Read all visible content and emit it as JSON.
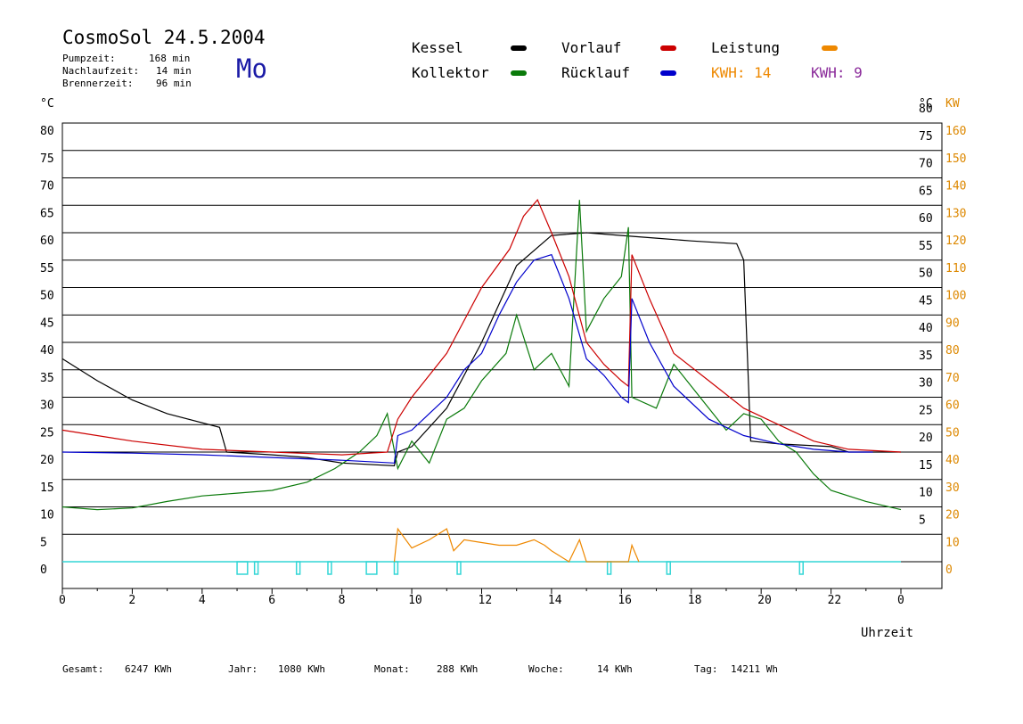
{
  "header": {
    "title": "CosmoSol 24.5.2004",
    "day": "Mo",
    "stats": [
      {
        "label": "Pumpzeit:",
        "value": "168 min"
      },
      {
        "label": "Nachlaufzeit:",
        "value": "14 min"
      },
      {
        "label": "Brennerzeit:",
        "value": "96 min"
      }
    ]
  },
  "legend": {
    "kessel": "Kessel",
    "kollektor": "Kollektor",
    "vorlauf": "Vorlauf",
    "ruecklauf": "Rücklauf",
    "leistung": "Leistung",
    "kwh_orange": "KWH: 14",
    "kwh_purple": "KWH: 9"
  },
  "axes": {
    "left_unit": "°C",
    "right_unit": "°C",
    "right_unit2": "KW",
    "xlabel": "Uhrzeit"
  },
  "footer": [
    {
      "label": "Gesamt:",
      "value": "6247 KWh"
    },
    {
      "label": "Jahr:",
      "value": "1080 KWh"
    },
    {
      "label": "Monat:",
      "value": "288 KWh"
    },
    {
      "label": "Woche:",
      "value": "14 KWh"
    },
    {
      "label": "Tag:",
      "value": "14211 Wh"
    }
  ],
  "colors": {
    "kessel": "#000000",
    "kollektor": "#0a7a0a",
    "vorlauf": "#cc0000",
    "ruecklauf": "#0000cc",
    "leistung": "#ee8800",
    "kwh2": "#8a2a9a",
    "pump": "#33d6d6",
    "right_kw": "#dd8800"
  },
  "chart_data": {
    "type": "line",
    "xlabel": "Uhrzeit",
    "xlim": [
      0,
      24
    ],
    "ylim": [
      -5,
      80
    ],
    "x_ticks": [
      "0",
      "2",
      "4",
      "6",
      "8",
      "10",
      "12",
      "14",
      "16",
      "18",
      "20",
      "22",
      "0"
    ],
    "y_ticks_left": [
      "0",
      "5",
      "10",
      "15",
      "20",
      "25",
      "30",
      "35",
      "40",
      "45",
      "50",
      "55",
      "60",
      "65",
      "70",
      "75",
      "80"
    ],
    "y_ticks_right": [
      "5",
      "10",
      "15",
      "20",
      "25",
      "30",
      "35",
      "40",
      "45",
      "50",
      "55",
      "60",
      "65",
      "70",
      "75",
      "80"
    ],
    "y_ticks_kw": [
      "0",
      "10",
      "20",
      "30",
      "40",
      "50",
      "60",
      "70",
      "80",
      "90",
      "100",
      "110",
      "120",
      "130",
      "140",
      "150",
      "160"
    ],
    "grid": true,
    "series": [
      {
        "name": "Kessel",
        "color": "#000000",
        "points": [
          [
            0,
            37
          ],
          [
            1,
            33
          ],
          [
            2,
            29.5
          ],
          [
            3,
            27
          ],
          [
            4.5,
            24.5
          ],
          [
            4.7,
            20
          ],
          [
            6,
            19.5
          ],
          [
            7,
            19
          ],
          [
            8,
            18
          ],
          [
            9.5,
            17.5
          ],
          [
            9.6,
            20
          ],
          [
            10,
            21
          ],
          [
            11,
            28
          ],
          [
            12,
            40
          ],
          [
            13,
            54
          ],
          [
            14,
            59.5
          ],
          [
            15,
            60
          ],
          [
            16,
            59.5
          ],
          [
            17,
            59
          ],
          [
            18,
            58.5
          ],
          [
            19.3,
            58
          ],
          [
            19.5,
            55
          ],
          [
            19.7,
            22
          ],
          [
            20.5,
            21.5
          ],
          [
            22,
            21
          ],
          [
            22.5,
            20
          ],
          [
            24,
            20
          ]
        ]
      },
      {
        "name": "Kollektor",
        "color": "#0a7a0a",
        "points": [
          [
            0,
            10
          ],
          [
            1,
            9.5
          ],
          [
            2,
            9.8
          ],
          [
            3,
            11
          ],
          [
            4,
            12
          ],
          [
            5,
            12.5
          ],
          [
            6,
            13
          ],
          [
            7,
            14.5
          ],
          [
            7.8,
            17
          ],
          [
            8.5,
            20
          ],
          [
            9,
            23
          ],
          [
            9.3,
            27
          ],
          [
            9.6,
            17
          ],
          [
            10,
            22
          ],
          [
            10.5,
            18
          ],
          [
            11,
            26
          ],
          [
            11.5,
            28
          ],
          [
            12,
            33
          ],
          [
            12.7,
            38
          ],
          [
            13,
            45
          ],
          [
            13.5,
            35
          ],
          [
            14,
            38
          ],
          [
            14.5,
            32
          ],
          [
            14.8,
            66
          ],
          [
            15,
            42
          ],
          [
            15.5,
            48
          ],
          [
            16,
            52
          ],
          [
            16.2,
            61
          ],
          [
            16.3,
            30
          ],
          [
            17,
            28
          ],
          [
            17.5,
            36
          ],
          [
            18,
            32
          ],
          [
            19,
            24
          ],
          [
            19.5,
            27
          ],
          [
            20,
            26
          ],
          [
            20.5,
            22
          ],
          [
            21,
            20
          ],
          [
            21.5,
            16
          ],
          [
            22,
            13
          ],
          [
            23,
            11
          ],
          [
            24,
            9.5
          ]
        ]
      },
      {
        "name": "Vorlauf",
        "color": "#cc0000",
        "points": [
          [
            0,
            24
          ],
          [
            2,
            22
          ],
          [
            4,
            20.5
          ],
          [
            6,
            20
          ],
          [
            8,
            19.5
          ],
          [
            9.3,
            20
          ],
          [
            9.6,
            26
          ],
          [
            10,
            30
          ],
          [
            11,
            38
          ],
          [
            12,
            50
          ],
          [
            12.8,
            57
          ],
          [
            13.2,
            63
          ],
          [
            13.6,
            66
          ],
          [
            14,
            60
          ],
          [
            14.5,
            52
          ],
          [
            15,
            40
          ],
          [
            15.5,
            36
          ],
          [
            16,
            33
          ],
          [
            16.2,
            32
          ],
          [
            16.3,
            56
          ],
          [
            16.8,
            48
          ],
          [
            17.5,
            38
          ],
          [
            18.5,
            33
          ],
          [
            19.5,
            28
          ],
          [
            20.5,
            25
          ],
          [
            21.5,
            22
          ],
          [
            22.5,
            20.5
          ],
          [
            24,
            20
          ]
        ]
      },
      {
        "name": "Rücklauf",
        "color": "#0000cc",
        "points": [
          [
            0,
            20
          ],
          [
            2,
            19.8
          ],
          [
            4,
            19.5
          ],
          [
            6,
            19
          ],
          [
            8,
            18.5
          ],
          [
            9.5,
            18
          ],
          [
            9.6,
            23
          ],
          [
            10,
            24
          ],
          [
            10.5,
            27
          ],
          [
            11,
            30
          ],
          [
            11.5,
            35
          ],
          [
            12,
            38
          ],
          [
            12.5,
            45
          ],
          [
            13,
            51
          ],
          [
            13.5,
            55
          ],
          [
            14,
            56
          ],
          [
            14.5,
            48
          ],
          [
            15,
            37
          ],
          [
            15.5,
            34
          ],
          [
            16,
            30
          ],
          [
            16.2,
            29
          ],
          [
            16.3,
            48
          ],
          [
            16.8,
            40
          ],
          [
            17.5,
            32
          ],
          [
            18.5,
            26
          ],
          [
            19.5,
            23
          ],
          [
            20.5,
            21.5
          ],
          [
            21.5,
            20.5
          ],
          [
            22.5,
            20
          ],
          [
            23.2,
            20
          ]
        ]
      },
      {
        "name": "Leistung",
        "color": "#ee8800",
        "points": [
          [
            9.5,
            0
          ],
          [
            9.6,
            6
          ],
          [
            10,
            2.5
          ],
          [
            10.5,
            4
          ],
          [
            11,
            6
          ],
          [
            11.2,
            2
          ],
          [
            11.5,
            4
          ],
          [
            12,
            3.5
          ],
          [
            12.5,
            3
          ],
          [
            13,
            3
          ],
          [
            13.5,
            4
          ],
          [
            13.8,
            3
          ],
          [
            14,
            2
          ],
          [
            14.5,
            0
          ],
          [
            14.8,
            4
          ],
          [
            15,
            0
          ],
          [
            16.2,
            0
          ],
          [
            16.3,
            3
          ],
          [
            16.5,
            0
          ]
        ]
      }
    ],
    "pump_intervals": [
      [
        5.0,
        5.3
      ],
      [
        5.5,
        5.6
      ],
      [
        6.7,
        6.8
      ],
      [
        7.6,
        7.7
      ],
      [
        8.7,
        9.0
      ],
      [
        9.5,
        9.6
      ],
      [
        11.3,
        11.4
      ],
      [
        15.6,
        15.7
      ],
      [
        17.3,
        17.4
      ],
      [
        21.1,
        21.2
      ]
    ]
  }
}
